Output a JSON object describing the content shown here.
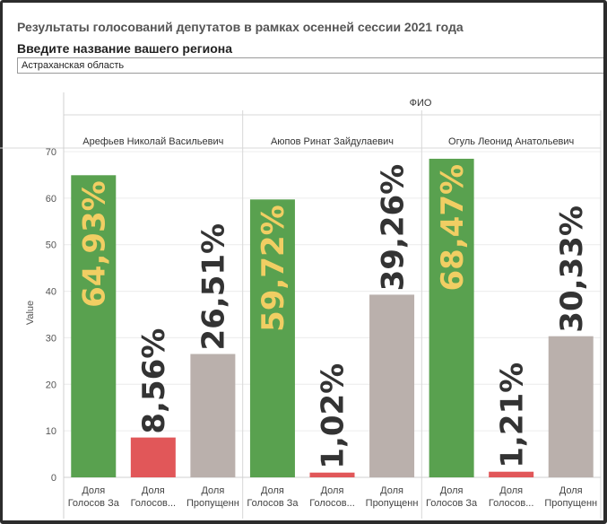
{
  "title": "Результаты голосований депутатов в рамках осенней сессии 2021 года",
  "filter": {
    "label": "Введите название вашего региона",
    "value": "Астраханская область"
  },
  "colors": {
    "za": "#59a14f",
    "golosov": "#e15759",
    "propusheno": "#bab0ac",
    "label_za": "#f1ce63",
    "label_other": "#333333"
  },
  "chart_data": {
    "type": "bar",
    "column_header": "ФИО",
    "ylabel": "Value",
    "ylim": [
      0,
      70
    ],
    "yticks": [
      0,
      10,
      20,
      30,
      40,
      50,
      60,
      70
    ],
    "categories": [
      "Доля Голосов За",
      "Доля Голосов...",
      "Доля Пропущенн"
    ],
    "category_lines": [
      [
        "Доля",
        "Голосов За"
      ],
      [
        "Доля",
        "Голосов..."
      ],
      [
        "Доля",
        "Пропущенн"
      ]
    ],
    "panels": [
      {
        "name": "Арефьев Николай Васильевич",
        "values": [
          64.93,
          8.56,
          26.51
        ],
        "labels": [
          "64,93%",
          "8,56%",
          "26,51%"
        ]
      },
      {
        "name": "Аюпов Ринат Зайдулаевич",
        "values": [
          59.72,
          1.02,
          39.26
        ],
        "labels": [
          "59,72%",
          "1,02%",
          "39,26%"
        ]
      },
      {
        "name": "Огуль Леонид Анатольевич",
        "values": [
          68.47,
          1.21,
          30.33
        ],
        "labels": [
          "68,47%",
          "1,21%",
          "30,33%"
        ]
      }
    ]
  }
}
